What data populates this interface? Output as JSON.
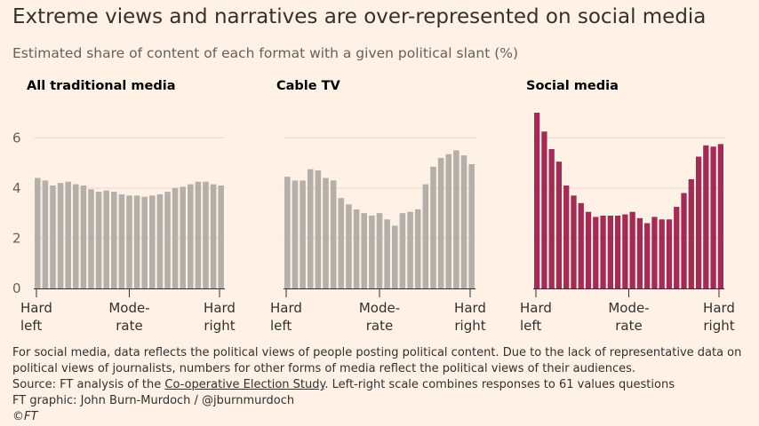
{
  "header": {
    "title": "Extreme views and narratives are over-represented on social media",
    "subtitle": "Estimated share of content of each format with a given political slant (%)"
  },
  "chart_data": [
    {
      "type": "bar",
      "title": "All traditional media",
      "color": "#B5AFAA",
      "ylim": [
        0,
        7
      ],
      "yticks": [
        0,
        2,
        4,
        6
      ],
      "xlabels": [
        [
          "Hard",
          "left"
        ],
        [
          "Mode-",
          "rate"
        ],
        [
          "Hard",
          "right"
        ]
      ],
      "values": [
        4.4,
        4.3,
        4.1,
        4.2,
        4.25,
        4.15,
        4.1,
        3.95,
        3.85,
        3.9,
        3.85,
        3.75,
        3.7,
        3.7,
        3.65,
        3.7,
        3.75,
        3.85,
        4.0,
        4.05,
        4.15,
        4.25,
        4.25,
        4.15,
        4.1
      ]
    },
    {
      "type": "bar",
      "title": "Cable TV",
      "color": "#B5AFAA",
      "ylim": [
        0,
        7
      ],
      "yticks": [
        0,
        2,
        4,
        6
      ],
      "xlabels": [
        [
          "Hard",
          "left"
        ],
        [
          "Mode-",
          "rate"
        ],
        [
          "Hard",
          "right"
        ]
      ],
      "values": [
        4.45,
        4.3,
        4.3,
        4.75,
        4.7,
        4.4,
        4.3,
        3.6,
        3.35,
        3.15,
        3.0,
        2.9,
        3.0,
        2.75,
        2.5,
        3.0,
        3.05,
        3.15,
        4.15,
        4.85,
        5.2,
        5.35,
        5.5,
        5.3,
        4.95
      ]
    },
    {
      "type": "bar",
      "title": "Social media",
      "color": "#A12C57",
      "ylim": [
        0,
        7
      ],
      "yticks": [
        0,
        2,
        4,
        6
      ],
      "xlabels": [
        [
          "Hard",
          "left"
        ],
        [
          "Mode-",
          "rate"
        ],
        [
          "Hard",
          "right"
        ]
      ],
      "values": [
        7.1,
        6.25,
        5.55,
        5.05,
        4.1,
        3.7,
        3.4,
        3.05,
        2.85,
        2.9,
        2.9,
        2.9,
        2.95,
        3.05,
        2.8,
        2.6,
        2.85,
        2.75,
        2.75,
        3.25,
        3.8,
        4.35,
        5.25,
        5.7,
        5.65,
        5.75
      ]
    }
  ],
  "footer": {
    "note_line1": "For social media, data reflects the political views of people posting political content. Due to the lack of representative data on",
    "note_line2": "political views of journalists, numbers for other forms of media reflect the political views of their audiences.",
    "source_prefix": "Source: FT analysis of the ",
    "source_link": "Co-operative Election Study",
    "source_suffix": ". Left-right scale combines responses to 61 values questions",
    "credit": "FT graphic: John Burn-Murdoch / @jburnmurdoch",
    "copyright": "©FT"
  }
}
